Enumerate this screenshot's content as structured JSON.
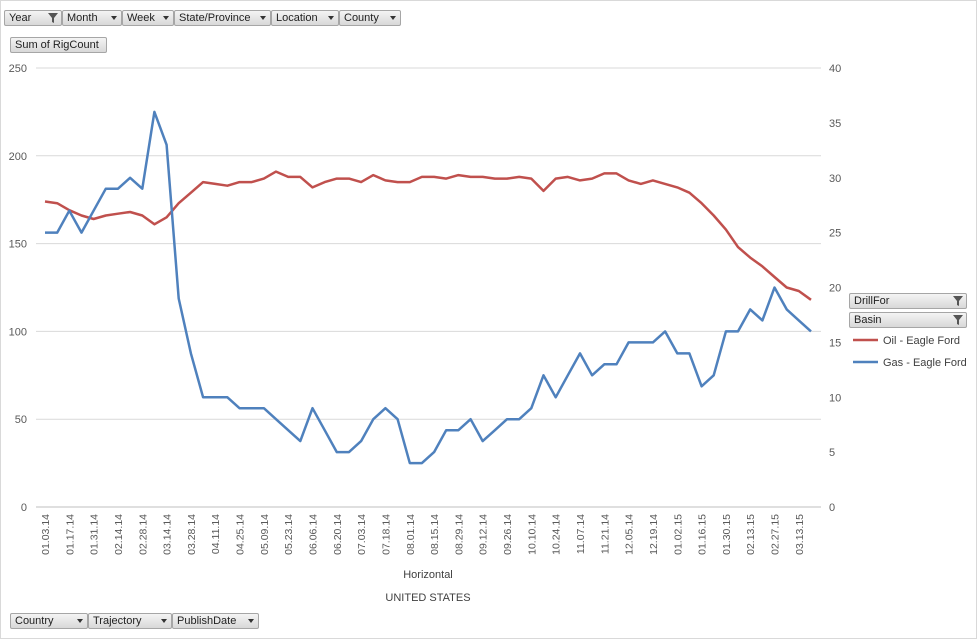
{
  "filters_top": [
    {
      "label": "Year",
      "filtered": true
    },
    {
      "label": "Month",
      "filtered": false
    },
    {
      "label": "Week",
      "filtered": false
    },
    {
      "label": "State/Province",
      "filtered": false
    },
    {
      "label": "Location",
      "filtered": false
    },
    {
      "label": "County",
      "filtered": false
    }
  ],
  "value_field": "Sum of RigCount",
  "filters_bottom": [
    {
      "label": "Country"
    },
    {
      "label": "Trajectory"
    },
    {
      "label": "PublishDate"
    }
  ],
  "legend_fields": [
    {
      "label": "DrillFor"
    },
    {
      "label": "Basin"
    }
  ],
  "chart_data": {
    "type": "line",
    "x": [
      "01.03.14",
      "01.10.14",
      "01.17.14",
      "01.24.14",
      "01.31.14",
      "02.07.14",
      "02.14.14",
      "02.21.14",
      "02.28.14",
      "03.07.14",
      "03.14.14",
      "03.21.14",
      "03.28.14",
      "04.04.14",
      "04.11.14",
      "04.18.14",
      "04.25.14",
      "05.02.14",
      "05.09.14",
      "05.16.14",
      "05.23.14",
      "05.30.14",
      "06.06.14",
      "06.13.14",
      "06.20.14",
      "06.27.14",
      "07.03.14",
      "07.11.14",
      "07.18.14",
      "07.25.14",
      "08.01.14",
      "08.08.14",
      "08.15.14",
      "08.22.14",
      "08.29.14",
      "09.05.14",
      "09.12.14",
      "09.19.14",
      "09.26.14",
      "10.03.14",
      "10.10.14",
      "10.17.14",
      "10.24.14",
      "10.31.14",
      "11.07.14",
      "11.14.14",
      "11.21.14",
      "11.26.14",
      "12.05.14",
      "12.12.14",
      "12.19.14",
      "12.24.14",
      "01.02.15",
      "01.09.15",
      "01.16.15",
      "01.23.15",
      "01.30.15",
      "02.06.15",
      "02.13.15",
      "02.20.15",
      "02.27.15",
      "03.06.15",
      "03.13.15",
      "03.20.15"
    ],
    "x_tick_labels": [
      "01.03.14",
      "01.17.14",
      "01.31.14",
      "02.14.14",
      "02.28.14",
      "03.14.14",
      "03.28.14",
      "04.11.14",
      "04.25.14",
      "05.09.14",
      "05.23.14",
      "06.06.14",
      "06.20.14",
      "07.03.14",
      "07.18.14",
      "08.01.14",
      "08.15.14",
      "08.29.14",
      "09.12.14",
      "09.26.14",
      "10.10.14",
      "10.24.14",
      "11.07.14",
      "11.21.14",
      "12.05.14",
      "12.19.14",
      "01.02.15",
      "01.16.15",
      "01.30.15",
      "02.13.15",
      "02.27.15",
      "03.13.15"
    ],
    "series": [
      {
        "name": "Oil - Eagle Ford",
        "axis": "left",
        "color": "#c0504d",
        "values": [
          174,
          173,
          169,
          166,
          164,
          166,
          167,
          168,
          166,
          161,
          165,
          173,
          179,
          185,
          184,
          183,
          185,
          185,
          187,
          191,
          188,
          188,
          182,
          185,
          187,
          187,
          185,
          189,
          186,
          185,
          185,
          188,
          188,
          187,
          189,
          188,
          188,
          187,
          187,
          188,
          187,
          180,
          187,
          188,
          186,
          187,
          190,
          190,
          186,
          184,
          186,
          184,
          182,
          179,
          173,
          166,
          158,
          148,
          142,
          137,
          131,
          125,
          123,
          118
        ]
      },
      {
        "name": "Gas - Eagle Ford",
        "axis": "right",
        "color": "#4f81bd",
        "values": [
          25,
          25,
          27,
          25,
          27,
          29,
          29,
          30,
          29,
          36,
          33,
          19,
          14,
          10,
          10,
          10,
          9,
          9,
          9,
          8,
          7,
          6,
          9,
          7,
          5,
          5,
          6,
          8,
          9,
          8,
          4,
          4,
          5,
          7,
          7,
          8,
          6,
          7,
          8,
          8,
          9,
          12,
          10,
          12,
          14,
          12,
          13,
          13,
          15,
          15,
          15,
          16,
          14,
          14,
          11,
          12,
          16,
          16,
          18,
          17,
          20,
          18,
          17,
          16
        ]
      }
    ],
    "y_left": {
      "min": 0,
      "max": 250,
      "ticks": [
        0,
        50,
        100,
        150,
        200,
        250
      ]
    },
    "y_right": {
      "min": 0,
      "max": 40,
      "ticks": [
        0,
        5,
        10,
        15,
        20,
        25,
        30,
        35,
        40
      ]
    },
    "xlabel": "Horizontal",
    "xlabel2": "UNITED STATES",
    "grid": true,
    "legend_position": "right"
  }
}
